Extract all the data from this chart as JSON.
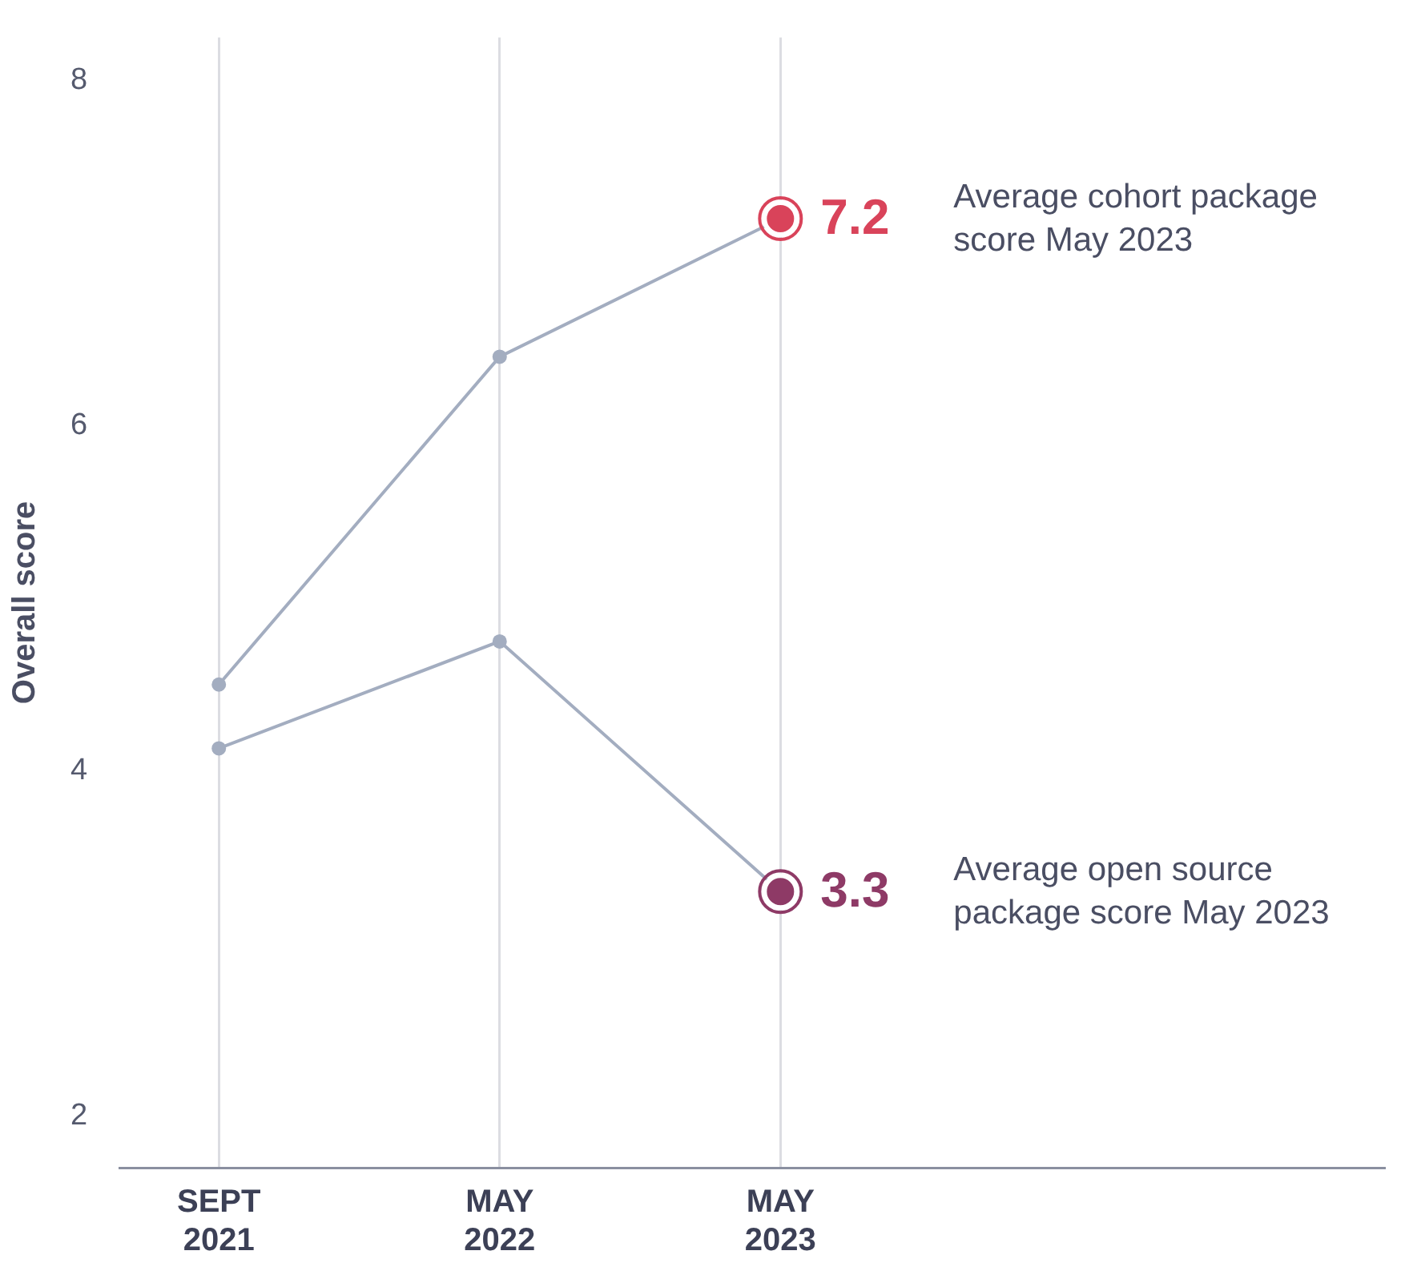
{
  "chart_data": {
    "type": "line",
    "ylabel": "Overall score",
    "categories": [
      "SEPT 2021",
      "MAY 2022",
      "MAY 2023"
    ],
    "series": [
      {
        "color": "#a3adc0",
        "colors": [
          "#a3adc0",
          "#a3adc0",
          "#d9435a"
        ],
        "values": [
          4.5,
          6.4,
          7.2
        ],
        "value_labels": [
          null,
          null,
          "7.2"
        ]
      },
      {
        "color": "#a3adc0",
        "colors": [
          "#a3adc0",
          "#a3adc0",
          "#8e3a66"
        ],
        "values": [
          4.13,
          4.75,
          3.3
        ],
        "value_labels": [
          null,
          null,
          "3.3"
        ]
      }
    ],
    "annotations": [
      "Average cohort package score May 2023",
      "Average open source package score May 2023"
    ],
    "ylim": [
      1.7,
      8.25
    ],
    "yticks": [
      2,
      4,
      6,
      8
    ],
    "grid": "x",
    "legend": false,
    "marker": "circle",
    "line_style": "solid"
  }
}
